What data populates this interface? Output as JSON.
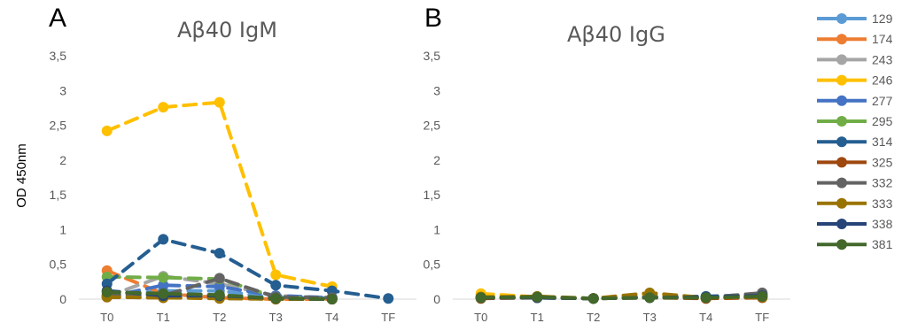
{
  "figure": {
    "ylabel": "OD 450nm"
  },
  "chart_data": [
    {
      "type": "line",
      "panel_label": "A",
      "title": "Aβ40 IgM",
      "ylabel": "OD 450nm",
      "xlabel": "",
      "categories": [
        "T0",
        "T1",
        "T2",
        "T3",
        "T4",
        "TF"
      ],
      "ylim": [
        0,
        3.5
      ],
      "yticks": [
        "0",
        "0,5",
        "1",
        "1,5",
        "2",
        "2,5",
        "3",
        "3,5"
      ],
      "grid": false,
      "legend": "right",
      "series": [
        {
          "name": "129",
          "color": "#5B9BD5",
          "values": [
            0.05,
            0.12,
            0.12,
            0.02,
            0.02,
            null
          ]
        },
        {
          "name": "174",
          "color": "#ED7D31",
          "values": [
            0.41,
            0.08,
            0.02,
            0.0,
            0.0,
            null
          ]
        },
        {
          "name": "243",
          "color": "#A5A5A5",
          "values": [
            0.04,
            0.33,
            0.22,
            0.05,
            0.02,
            null
          ]
        },
        {
          "name": "246",
          "color": "#FFC000",
          "values": [
            2.42,
            2.76,
            2.83,
            0.35,
            0.18,
            null
          ]
        },
        {
          "name": "277",
          "color": "#4472C4",
          "values": [
            0.03,
            0.2,
            0.18,
            0.05,
            0.02,
            null
          ]
        },
        {
          "name": "295",
          "color": "#70AD47",
          "values": [
            0.32,
            0.31,
            0.29,
            0.03,
            0.01,
            null
          ]
        },
        {
          "name": "314",
          "color": "#255E91",
          "values": [
            0.22,
            0.86,
            0.66,
            0.2,
            0.12,
            0.01
          ]
        },
        {
          "name": "325",
          "color": "#9E480E",
          "values": [
            0.03,
            0.02,
            0.02,
            0.0,
            0.0,
            null
          ]
        },
        {
          "name": "332",
          "color": "#636363",
          "values": [
            0.06,
            0.05,
            0.3,
            0.03,
            0.02,
            null
          ]
        },
        {
          "name": "333",
          "color": "#997300",
          "values": [
            0.03,
            0.02,
            0.01,
            0.0,
            0.0,
            null
          ]
        },
        {
          "name": "338",
          "color": "#264478",
          "values": [
            0.12,
            0.05,
            0.05,
            0.01,
            0.0,
            null
          ]
        },
        {
          "name": "381",
          "color": "#43682B",
          "values": [
            0.1,
            0.08,
            0.06,
            0.01,
            0.0,
            null
          ]
        }
      ]
    },
    {
      "type": "line",
      "panel_label": "B",
      "title": "Aβ40 IgG",
      "xlabel": "",
      "ylabel": "",
      "categories": [
        "T0",
        "T1",
        "T2",
        "T3",
        "T4",
        "TF"
      ],
      "ylim": [
        0,
        3.5
      ],
      "yticks": [
        "0",
        "0,5",
        "1",
        "1,5",
        "2",
        "2,5",
        "3",
        "3,5"
      ],
      "grid": false,
      "legend": "right",
      "series": [
        {
          "name": "129",
          "color": "#5B9BD5",
          "values": [
            0.03,
            0.02,
            0.01,
            0.03,
            0.02,
            0.07
          ]
        },
        {
          "name": "174",
          "color": "#ED7D31",
          "values": [
            0.02,
            0.03,
            0.01,
            0.04,
            0.01,
            0.03
          ]
        },
        {
          "name": "243",
          "color": "#A5A5A5",
          "values": [
            0.04,
            0.03,
            0.01,
            0.06,
            0.02,
            0.05
          ]
        },
        {
          "name": "246",
          "color": "#FFC000",
          "values": [
            0.08,
            0.03,
            0.01,
            0.07,
            0.02,
            0.05
          ]
        },
        {
          "name": "277",
          "color": "#4472C4",
          "values": [
            0.02,
            0.02,
            0.01,
            0.03,
            0.03,
            0.08
          ]
        },
        {
          "name": "295",
          "color": "#70AD47",
          "values": [
            0.03,
            0.02,
            0.01,
            0.03,
            0.02,
            0.03
          ]
        },
        {
          "name": "314",
          "color": "#255E91",
          "values": [
            0.02,
            0.02,
            0.01,
            0.03,
            0.04,
            0.06
          ]
        },
        {
          "name": "325",
          "color": "#9E480E",
          "values": [
            0.01,
            0.02,
            0.01,
            0.02,
            0.01,
            0.02
          ]
        },
        {
          "name": "332",
          "color": "#636363",
          "values": [
            0.02,
            0.02,
            0.01,
            0.03,
            0.02,
            0.09
          ]
        },
        {
          "name": "333",
          "color": "#997300",
          "values": [
            0.03,
            0.04,
            0.01,
            0.09,
            0.02,
            0.03
          ]
        },
        {
          "name": "338",
          "color": "#264478",
          "values": [
            0.02,
            0.02,
            0.01,
            0.02,
            0.03,
            0.05
          ]
        },
        {
          "name": "381",
          "color": "#43682B",
          "values": [
            0.02,
            0.03,
            0.01,
            0.02,
            0.02,
            0.04
          ]
        }
      ]
    }
  ]
}
